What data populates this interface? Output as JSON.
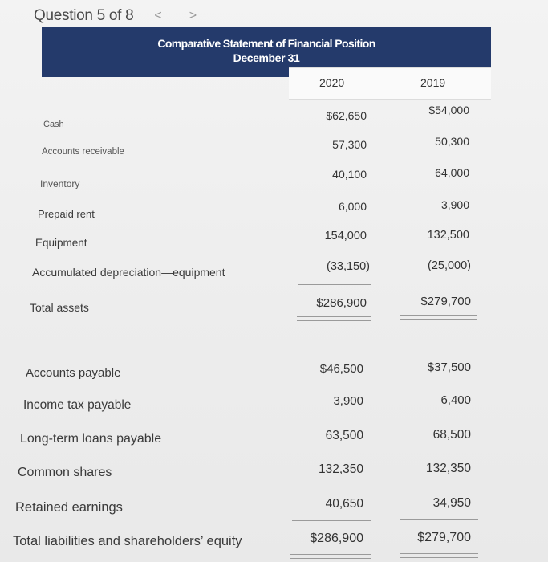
{
  "question": {
    "title": "Question 5 of 8",
    "prev_icon": "<",
    "next_icon": ">"
  },
  "statement": {
    "title": "Comparative Statement of Financial Position",
    "date": "December 31",
    "years": [
      "2020",
      "2019"
    ],
    "header_color": "#243a6b"
  },
  "assets": [
    {
      "label": "Cash",
      "y2020": "$62,650",
      "y2019": "$54,000"
    },
    {
      "label": "Accounts receivable",
      "y2020": "57,300",
      "y2019": "50,300"
    },
    {
      "label": "Inventory",
      "y2020": "40,100",
      "y2019": "64,000"
    },
    {
      "label": "Prepaid rent",
      "y2020": "6,000",
      "y2019": "3,900"
    },
    {
      "label": "Equipment",
      "y2020": "154,000",
      "y2019": "132,500"
    },
    {
      "label": "Accumulated depreciation—equipment",
      "y2020": "(33,150)",
      "y2019": "(25,000)"
    }
  ],
  "total_assets": {
    "label": "Total assets",
    "y2020": "$286,900",
    "y2019": "$279,700"
  },
  "liabilities_equity": [
    {
      "label": "Accounts payable",
      "y2020": "$46,500",
      "y2019": "$37,500"
    },
    {
      "label": "Income tax payable",
      "y2020": "3,900",
      "y2019": "6,400"
    },
    {
      "label": "Long-term loans payable",
      "y2020": "63,500",
      "y2019": "68,500"
    },
    {
      "label": "Common shares",
      "y2020": "132,350",
      "y2019": "132,350"
    },
    {
      "label": "Retained earnings",
      "y2020": "40,650",
      "y2019": "34,950"
    }
  ],
  "total_liabilities_equity": {
    "label": "Total liabilities and shareholders’ equity",
    "y2020": "$286,900",
    "y2019": "$279,700"
  }
}
